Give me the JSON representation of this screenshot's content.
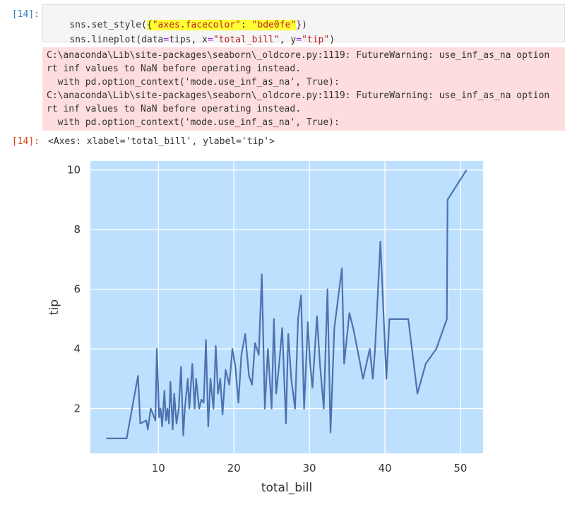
{
  "cell": {
    "input_prompt": "[14]:",
    "output_prompt": "[14]:",
    "code": {
      "line1": {
        "fn": "sns.set_style(",
        "brace_open": "{",
        "key": "\"axes.facecolor\"",
        "colon": ": ",
        "value": "\"bde0fe\"",
        "brace_close": "}",
        "paren_close": ")"
      },
      "line2": {
        "fn": "sns.lineplot(",
        "a1": "data",
        "eq1": "=",
        "v1": "tips, ",
        "a2": "x",
        "eq2": "=",
        "v2": "\"total_bill\"",
        "sep": ", ",
        "a3": "y",
        "eq3": "=",
        "v3": "\"tip\"",
        "close": ")"
      }
    },
    "stderr_lines": [
      "C:\\anaconda\\Lib\\site-packages\\seaborn\\_oldcore.py:1119: FutureWarning: use_inf_as_na option",
      "rt inf values to NaN before operating instead.",
      "  with pd.option_context('mode.use_inf_as_na', True):",
      "C:\\anaconda\\Lib\\site-packages\\seaborn\\_oldcore.py:1119: FutureWarning: use_inf_as_na option",
      "rt inf values to NaN before operating instead.",
      "  with pd.option_context('mode.use_inf_as_na', True):"
    ],
    "output_text": "<Axes: xlabel='total_bill', ylabel='tip'>"
  },
  "colors": {
    "facecolor": "#bde0fe",
    "line": "#4c72b0",
    "grid": "#ffffff",
    "stderr_bg": "#fddddd",
    "highlight": "#ffff33"
  },
  "chart_data": {
    "type": "line",
    "xlabel": "total_bill",
    "ylabel": "tip",
    "xlim": [
      1,
      53
    ],
    "ylim": [
      0.5,
      10.3
    ],
    "xticks": [
      10,
      20,
      30,
      40,
      50
    ],
    "yticks": [
      2,
      4,
      6,
      8,
      10
    ],
    "grid": true,
    "x": [
      3.1,
      5.8,
      7.3,
      7.6,
      8.4,
      8.6,
      9.0,
      9.6,
      9.8,
      10.1,
      10.3,
      10.5,
      10.8,
      11.0,
      11.2,
      11.4,
      11.6,
      11.9,
      12.1,
      12.4,
      12.7,
      13.0,
      13.3,
      13.5,
      13.9,
      14.1,
      14.5,
      14.8,
      15.0,
      15.4,
      15.7,
      16.0,
      16.3,
      16.6,
      16.9,
      17.3,
      17.6,
      17.9,
      18.2,
      18.5,
      18.9,
      19.4,
      19.8,
      20.2,
      20.6,
      21.0,
      21.5,
      22.0,
      22.4,
      22.8,
      23.3,
      23.7,
      24.1,
      24.5,
      25.0,
      25.3,
      25.6,
      26.0,
      26.4,
      26.9,
      27.2,
      27.6,
      28.1,
      28.5,
      28.9,
      29.3,
      29.8,
      30.1,
      30.4,
      31.0,
      31.4,
      31.9,
      32.4,
      32.8,
      33.3,
      33.9,
      34.3,
      34.6,
      35.3,
      35.8,
      36.5,
      37.1,
      38.0,
      38.4,
      38.7,
      39.4,
      40.2,
      40.6,
      41.2,
      42.0,
      43.1,
      44.3,
      45.4,
      46.8,
      48.2,
      48.3,
      50.8
    ],
    "y": [
      1.0,
      1.0,
      3.1,
      1.5,
      1.6,
      1.3,
      2.0,
      1.6,
      4.0,
      1.7,
      2.0,
      1.4,
      2.6,
      1.6,
      2.0,
      1.5,
      2.9,
      1.3,
      2.5,
      1.5,
      2.0,
      3.4,
      1.1,
      2.0,
      3.0,
      2.0,
      3.5,
      2.0,
      3.0,
      2.0,
      2.3,
      2.2,
      4.3,
      1.4,
      3.0,
      2.0,
      4.1,
      2.5,
      3.0,
      1.8,
      3.3,
      2.8,
      4.0,
      3.4,
      2.2,
      3.8,
      4.5,
      3.1,
      2.8,
      4.2,
      3.8,
      6.5,
      2.0,
      4.0,
      2.0,
      5.0,
      2.5,
      3.5,
      4.7,
      1.5,
      4.5,
      3.0,
      2.0,
      5.0,
      5.8,
      2.0,
      4.9,
      3.5,
      2.7,
      5.1,
      3.5,
      2.0,
      6.0,
      1.2,
      4.7,
      5.9,
      6.7,
      3.5,
      5.2,
      4.7,
      3.8,
      3.0,
      4.0,
      3.0,
      4.0,
      7.6,
      3.0,
      5.0,
      5.0,
      5.0,
      5.0,
      2.5,
      3.5,
      4.0,
      5.0,
      9.0,
      10.0
    ]
  }
}
